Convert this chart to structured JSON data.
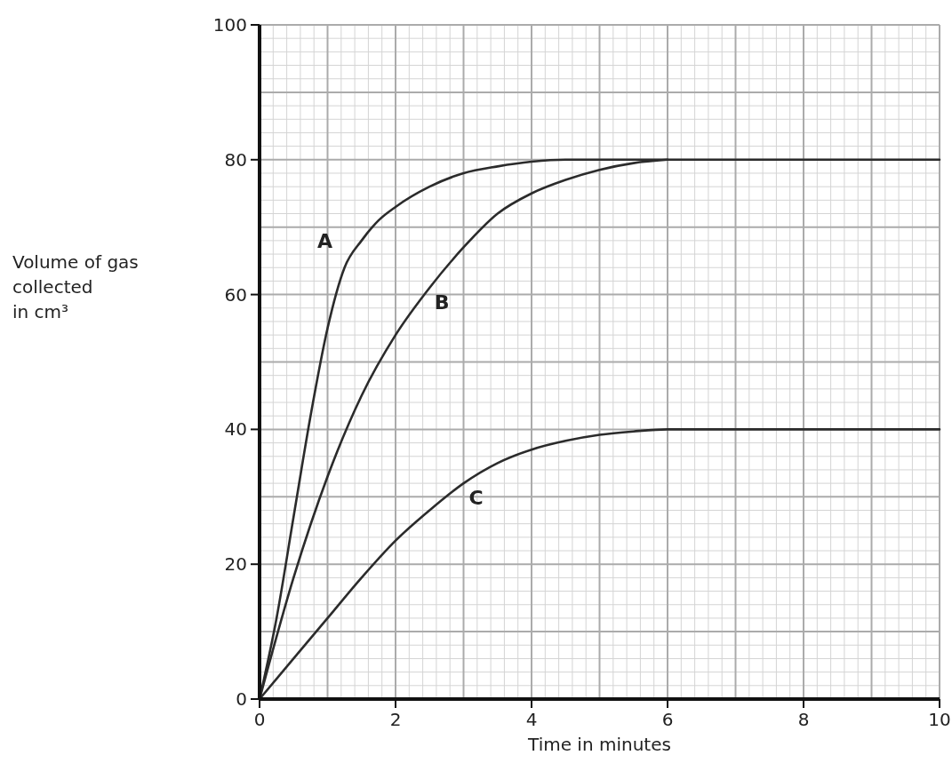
{
  "chart_data": {
    "type": "line",
    "xlabel": "Time in minutes",
    "ylabel": "Volume of gas\ncollected\nin cm³",
    "xlim": [
      0,
      10
    ],
    "ylim": [
      0,
      100
    ],
    "xticks": [
      0,
      {
        "value": 1,
        "label": null
      },
      2,
      {
        "value": 3,
        "label": null
      },
      4,
      {
        "value": 5,
        "label": null
      },
      6,
      {
        "value": 7,
        "label": null
      },
      8,
      {
        "value": 9,
        "label": null
      },
      10
    ],
    "yticks": [
      0,
      {
        "value": 10,
        "label": null
      },
      20,
      {
        "value": 30,
        "label": null
      },
      40,
      {
        "value": 50,
        "label": null
      },
      60,
      {
        "value": 70,
        "label": null
      },
      80,
      {
        "value": 90,
        "label": null
      },
      100
    ],
    "grid": true,
    "marker": "none",
    "line_style": "solid",
    "series": [
      {
        "name": "A",
        "color": "#2b2b2b",
        "x": [
          0,
          0.25,
          0.5,
          0.75,
          1,
          1.25,
          1.5,
          1.75,
          2,
          2.5,
          3,
          3.5,
          4,
          4.5,
          10
        ],
        "values": [
          0,
          12,
          27,
          42,
          55,
          64,
          68,
          71,
          73,
          76,
          78,
          79,
          79.7,
          80,
          80
        ]
      },
      {
        "name": "B",
        "color": "#2b2b2b",
        "x": [
          0,
          0.5,
          1,
          1.5,
          2,
          2.5,
          3,
          3.5,
          4,
          4.5,
          5,
          5.5,
          6
        ],
        "values": [
          0,
          18,
          33,
          45,
          54,
          61,
          67,
          72,
          75,
          77,
          78.5,
          79.5,
          80
        ]
      },
      {
        "name": "C",
        "color": "#2b2b2b",
        "x": [
          0,
          0.5,
          1,
          1.5,
          2,
          2.5,
          3,
          3.5,
          4,
          4.5,
          5,
          5.5,
          6,
          10
        ],
        "values": [
          0,
          6,
          12,
          18,
          23.5,
          28,
          32,
          35,
          37,
          38.3,
          39.2,
          39.7,
          40,
          40
        ]
      }
    ]
  }
}
